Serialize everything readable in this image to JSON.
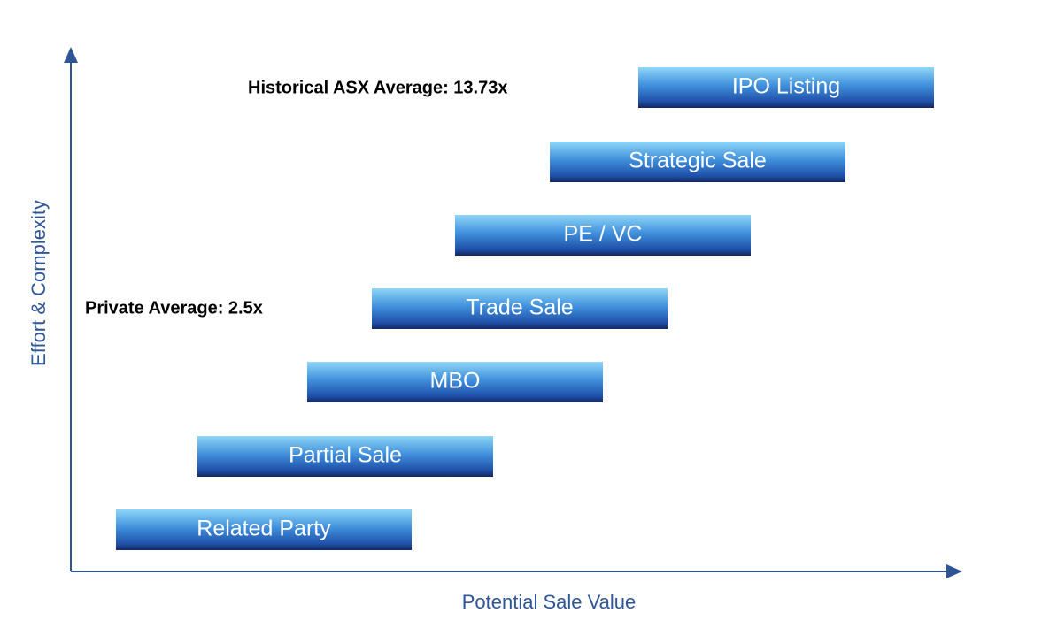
{
  "axes": {
    "x_label": "Potential Sale Value",
    "y_label": "Effort & Complexity"
  },
  "annotations": [
    "Historical ASX Average: 13.73x",
    "Private Average: 2.5x"
  ],
  "options": [
    "Related Party",
    "Partial Sale",
    "MBO",
    "Trade Sale",
    "PE / VC",
    "Strategic Sale",
    "IPO Listing"
  ]
}
